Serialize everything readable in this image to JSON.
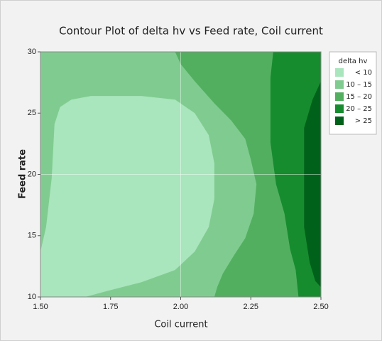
{
  "chart_data": {
    "type": "contour",
    "title": "Contour Plot of delta hv vs Feed rate, Coil current",
    "xlabel": "Coil current",
    "ylabel": "Feed rate",
    "legend_title": "delta hv",
    "xlim": [
      1.5,
      2.5
    ],
    "ylim": [
      10,
      30
    ],
    "xticks": [
      {
        "value": 1.5,
        "label": "1.50"
      },
      {
        "value": 1.75,
        "label": "1.75"
      },
      {
        "value": 2.0,
        "label": "2.00"
      },
      {
        "value": 2.25,
        "label": "2.25"
      },
      {
        "value": 2.5,
        "label": "2.50"
      }
    ],
    "yticks": [
      10,
      15,
      20,
      25,
      30
    ],
    "xgrid": [
      2.0
    ],
    "ygrid": [
      20
    ],
    "series": [
      {
        "name": "< 10",
        "color": "#a9e5bd",
        "x": [
          1.5,
          1.66,
          1.74,
          1.86,
          1.98,
          2.05,
          2.1,
          2.12,
          2.12,
          2.1,
          2.05,
          1.98,
          1.86,
          1.68,
          1.61,
          1.57,
          1.55,
          1.54,
          1.52,
          1.5
        ],
        "y": [
          10,
          10,
          10.5,
          11.2,
          12.2,
          13.7,
          15.7,
          18.0,
          20.9,
          23.2,
          25.0,
          26.1,
          26.4,
          26.4,
          26.1,
          25.5,
          24.1,
          19.7,
          15.7,
          13.7
        ]
      },
      {
        "name": "10 – 15",
        "color": "#80cc90",
        "x": [
          1.5,
          1.98,
          2.0,
          2.05,
          2.12,
          2.18,
          2.23,
          2.25,
          2.27,
          2.26,
          2.23,
          2.19,
          2.15,
          2.13,
          2.12,
          1.5
        ],
        "y": [
          30,
          30,
          29.0,
          27.6,
          25.8,
          24.4,
          22.9,
          21.2,
          19.2,
          16.8,
          14.8,
          13.4,
          11.9,
          10.8,
          10,
          10
        ]
      },
      {
        "name": "15 – 20",
        "color": "#53af60",
        "x": [
          1.5,
          2.33,
          2.32,
          2.32,
          2.32,
          2.34,
          2.37,
          2.39,
          2.41,
          2.42,
          1.5
        ],
        "y": [
          30,
          30,
          27.9,
          26.1,
          22.6,
          19.2,
          16.8,
          13.9,
          12.2,
          10,
          10
        ]
      },
      {
        "name": "20 – 25",
        "color": "#168c2e",
        "x": [
          1.5,
          2.5,
          2.5,
          2.47,
          2.44,
          2.44,
          2.44,
          2.46,
          2.48,
          2.5,
          2.5,
          1.5
        ],
        "y": [
          30,
          30,
          27.6,
          26.1,
          23.8,
          19.7,
          15.7,
          12.8,
          11.3,
          10.8,
          10,
          10
        ]
      },
      {
        "name": "> 25",
        "color": "#00621a",
        "x": [
          1.5,
          2.5,
          2.5,
          1.5
        ],
        "y": [
          30,
          30,
          10,
          10
        ]
      }
    ]
  }
}
